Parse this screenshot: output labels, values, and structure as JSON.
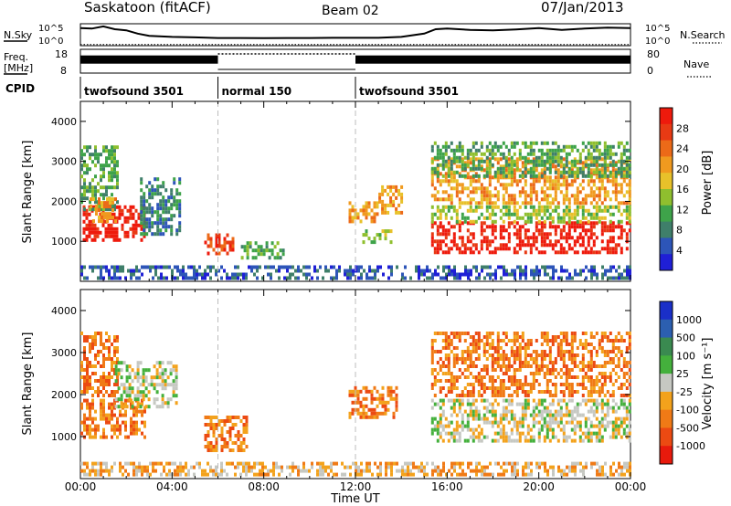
{
  "header": {
    "site": "Saskatoon (fitACF)",
    "beam": "Beam 02",
    "date": "07/Jan/2013"
  },
  "colors": {
    "power": [
      "#1f1fd6",
      "#2d55b8",
      "#3f7f6a",
      "#3ea34a",
      "#8fbf2e",
      "#e8c12a",
      "#f09a1f",
      "#ec6a18",
      "#e83a14",
      "#ee1a0c"
    ],
    "velocity": [
      "#1a2fc8",
      "#2c5fb0",
      "#3a8a50",
      "#44b03c",
      "#c6c8c2",
      "#f3a21c",
      "#f07a16",
      "#ec4a12",
      "#e81a0c"
    ],
    "ground": "#c6c8c2",
    "gridline": "#bdbdbd"
  },
  "chart_data": [
    {
      "type": "line",
      "name": "nsky-nsearch",
      "labels": {
        "left": "N.Sky",
        "right": "N.Search",
        "yticks_left": [
          "10^5",
          "10^0"
        ],
        "yticks_right": [
          "10^5",
          "10^0"
        ]
      },
      "x": [
        0,
        0.5,
        1,
        1.5,
        2,
        2.5,
        3,
        4,
        5,
        6,
        7,
        8,
        9,
        10,
        11,
        12,
        13,
        14,
        15,
        15.5,
        16,
        17,
        18,
        19,
        20,
        21,
        22,
        23,
        24
      ],
      "series": [
        {
          "values": [
            0.8,
            0.78,
            0.88,
            0.75,
            0.7,
            0.55,
            0.45,
            0.4,
            0.38,
            0.35,
            0.35,
            0.34,
            0.35,
            0.35,
            0.36,
            0.36,
            0.36,
            0.4,
            0.55,
            0.75,
            0.78,
            0.72,
            0.7,
            0.74,
            0.8,
            0.72,
            0.78,
            0.82,
            0.8
          ]
        },
        {
          "values": [
            0.05,
            0.05,
            0.05,
            0.05,
            0.05,
            0.05,
            0.05,
            0.05,
            0.05,
            0.05,
            0.05,
            0.05,
            0.05,
            0.05,
            0.05,
            0.05,
            0.05,
            0.05,
            0.05,
            0.05,
            0.05,
            0.05,
            0.05,
            0.05,
            0.05,
            0.05,
            0.05,
            0.05,
            0.05
          ]
        }
      ]
    },
    {
      "type": "area",
      "name": "frequency-nave",
      "labels": {
        "left": "Freq. [MHz]",
        "right": "Nave",
        "yticks_left": [
          "18",
          "8"
        ],
        "yticks_right": [
          "80",
          "0"
        ]
      },
      "series": [
        {
          "name": "Freq",
          "segments": [
            [
              0,
              6,
              0.55
            ],
            [
              12,
              24,
              0.55
            ]
          ]
        },
        {
          "name": "Nave",
          "segments": [
            [
              6,
              12,
              0.95
            ]
          ]
        }
      ]
    },
    {
      "type": "table",
      "name": "cpid",
      "label": "CPID",
      "segments": [
        {
          "start": 0,
          "end": 6,
          "label": "twofsound 3501"
        },
        {
          "start": 6,
          "end": 12,
          "label": "normal 150"
        },
        {
          "start": 12,
          "end": 24,
          "label": "twofsound 3501"
        }
      ]
    },
    {
      "type": "heatmap",
      "name": "power",
      "ylabel": "Slant Range [km]",
      "ylim": [
        0,
        4500
      ],
      "yticks": [
        1000,
        2000,
        3000,
        4000
      ],
      "colorbar": {
        "label": "Power [dB]",
        "ticks": [
          "28",
          "24",
          "20",
          "16",
          "12",
          "8",
          "4"
        ]
      },
      "patches": [
        {
          "x": [
            0.1,
            2.8
          ],
          "y": [
            1000,
            1900
          ],
          "level": 9
        },
        {
          "x": [
            0.0,
            1.6
          ],
          "y": [
            1800,
            3400
          ],
          "level": 3
        },
        {
          "x": [
            0.4,
            1.5
          ],
          "y": [
            1500,
            2100
          ],
          "level": 6
        },
        {
          "x": [
            2.6,
            4.3
          ],
          "y": [
            1200,
            2600
          ],
          "level": 2
        },
        {
          "x": [
            5.4,
            6.6
          ],
          "y": [
            700,
            1200
          ],
          "level": 8
        },
        {
          "x": [
            7.0,
            8.8
          ],
          "y": [
            600,
            1000
          ],
          "level": 3
        },
        {
          "x": [
            11.7,
            13.0
          ],
          "y": [
            1500,
            2000
          ],
          "level": 6
        },
        {
          "x": [
            13.0,
            14.0
          ],
          "y": [
            1700,
            2400
          ],
          "level": 6
        },
        {
          "x": [
            12.3,
            13.6
          ],
          "y": [
            1000,
            1300
          ],
          "level": 4
        },
        {
          "x": [
            15.3,
            24.0
          ],
          "y": [
            700,
            1500
          ],
          "level": 9
        },
        {
          "x": [
            15.3,
            24.0
          ],
          "y": [
            1500,
            1900
          ],
          "level": 4
        },
        {
          "x": [
            15.3,
            24.0
          ],
          "y": [
            2000,
            3100
          ],
          "level": 6
        },
        {
          "x": [
            15.3,
            24.0
          ],
          "y": [
            2600,
            3500
          ],
          "level": 3
        },
        {
          "x": [
            0.0,
            24.0
          ],
          "y": [
            100,
            400
          ],
          "level": 1
        }
      ]
    },
    {
      "type": "heatmap",
      "name": "velocity",
      "ylabel": "Slant Range [km]",
      "xlabel": "Time UT",
      "xticks": [
        "00:00",
        "04:00",
        "08:00",
        "12:00",
        "16:00",
        "20:00",
        "00:00"
      ],
      "ylim": [
        0,
        4500
      ],
      "yticks": [
        1000,
        2000,
        3000,
        4000
      ],
      "colorbar": {
        "label": "Velocity [m s⁻¹]",
        "ticks": [
          "1000",
          "500",
          "100",
          "25",
          "-25",
          "-100",
          "-500",
          "-1000"
        ]
      },
      "patches": [
        {
          "x": [
            0.0,
            2.8
          ],
          "y": [
            1000,
            1900
          ],
          "level": 6
        },
        {
          "x": [
            0.0,
            1.6
          ],
          "y": [
            2000,
            3500
          ],
          "level": 6
        },
        {
          "x": [
            1.5,
            4.2
          ],
          "y": [
            1700,
            2800
          ],
          "level": 4
        },
        {
          "x": [
            5.4,
            7.2
          ],
          "y": [
            700,
            1500
          ],
          "level": 6
        },
        {
          "x": [
            11.7,
            13.8
          ],
          "y": [
            1500,
            2200
          ],
          "level": 6
        },
        {
          "x": [
            15.3,
            24.0
          ],
          "y": [
            900,
            1900
          ],
          "level": 4
        },
        {
          "x": [
            15.3,
            24.0
          ],
          "y": [
            2000,
            3500
          ],
          "level": 6
        },
        {
          "x": [
            0.0,
            24.0
          ],
          "y": [
            100,
            400
          ],
          "level": 5
        }
      ]
    }
  ]
}
